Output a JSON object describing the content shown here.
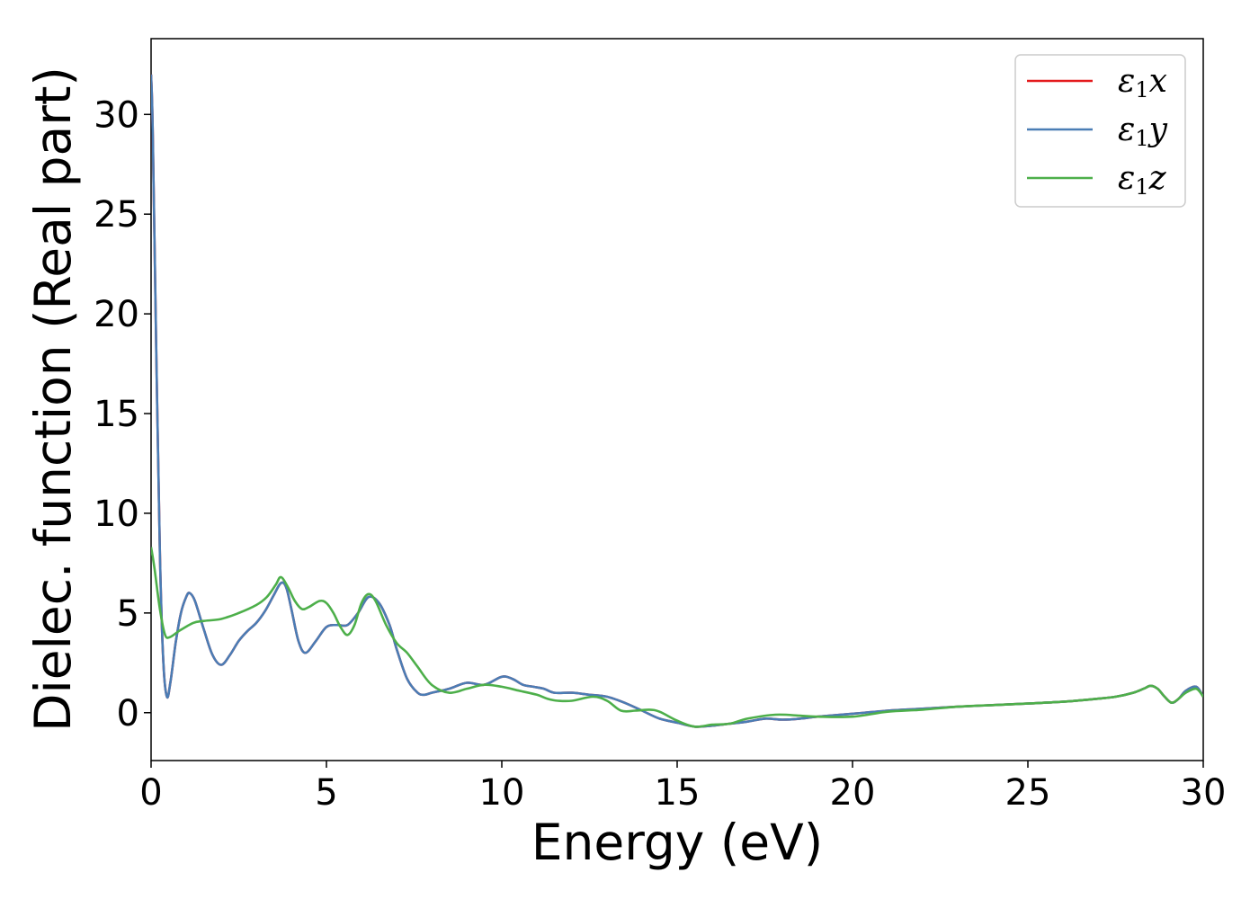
{
  "chart_data": {
    "type": "line",
    "xlabel": "Energy (eV)",
    "ylabel": "Dielec. function (Real part)",
    "xlim": [
      0,
      30
    ],
    "ylim": [
      -2.4,
      33.8
    ],
    "xticks": [
      0,
      5,
      10,
      15,
      20,
      25,
      30
    ],
    "yticks": [
      0,
      5,
      10,
      15,
      20,
      25,
      30
    ],
    "grid": false,
    "legend_position": "top-right",
    "series": [
      {
        "name": "ε1x",
        "symbol": "ε",
        "subscript": "1",
        "suffix": "x",
        "color": "#e41a1c",
        "x": [
          0,
          0.05,
          0.15,
          0.25,
          0.35,
          0.45,
          0.55,
          0.7,
          0.85,
          1.0,
          1.1,
          1.25,
          1.5,
          1.75,
          2.0,
          2.25,
          2.5,
          2.75,
          3.0,
          3.25,
          3.5,
          3.7,
          3.85,
          4.0,
          4.2,
          4.4,
          4.7,
          5.0,
          5.3,
          5.6,
          5.9,
          6.2,
          6.5,
          6.8,
          7.0,
          7.3,
          7.6,
          7.8,
          8.0,
          8.5,
          9.0,
          9.5,
          10.0,
          10.3,
          10.6,
          10.9,
          11.2,
          11.5,
          12.0,
          12.5,
          13.0,
          13.5,
          14.0,
          14.5,
          15.0,
          15.5,
          16.0,
          16.5,
          17.0,
          17.5,
          18.0,
          18.5,
          19.0,
          20.0,
          21.0,
          22.0,
          23.0,
          24.0,
          25.0,
          26.0,
          27.0,
          27.5,
          28.0,
          28.3,
          28.5,
          28.7,
          28.9,
          29.1,
          29.3,
          29.5,
          29.8,
          30.0
        ],
        "y": [
          32.0,
          29.0,
          18.0,
          8.0,
          2.5,
          0.8,
          1.5,
          3.5,
          5.0,
          5.8,
          6.0,
          5.6,
          4.2,
          2.9,
          2.4,
          2.9,
          3.6,
          4.1,
          4.5,
          5.1,
          5.9,
          6.5,
          6.3,
          5.2,
          3.6,
          3.0,
          3.6,
          4.3,
          4.4,
          4.4,
          5.0,
          5.8,
          5.5,
          4.4,
          3.2,
          1.7,
          1.0,
          0.9,
          1.0,
          1.2,
          1.5,
          1.4,
          1.8,
          1.7,
          1.4,
          1.3,
          1.2,
          1.0,
          1.0,
          0.9,
          0.8,
          0.5,
          0.1,
          -0.3,
          -0.5,
          -0.7,
          -0.65,
          -0.55,
          -0.45,
          -0.3,
          -0.35,
          -0.3,
          -0.2,
          -0.05,
          0.1,
          0.2,
          0.3,
          0.38,
          0.46,
          0.55,
          0.7,
          0.8,
          1.0,
          1.2,
          1.35,
          1.2,
          0.8,
          0.5,
          0.7,
          1.1,
          1.3,
          0.8
        ]
      },
      {
        "name": "ε1y",
        "symbol": "ε",
        "subscript": "1",
        "suffix": "y",
        "color": "#4a7db5",
        "x": [
          0,
          0.05,
          0.15,
          0.25,
          0.35,
          0.45,
          0.55,
          0.7,
          0.85,
          1.0,
          1.1,
          1.25,
          1.5,
          1.75,
          2.0,
          2.25,
          2.5,
          2.75,
          3.0,
          3.25,
          3.5,
          3.7,
          3.85,
          4.0,
          4.2,
          4.4,
          4.7,
          5.0,
          5.3,
          5.6,
          5.9,
          6.2,
          6.5,
          6.8,
          7.0,
          7.3,
          7.6,
          7.8,
          8.0,
          8.5,
          9.0,
          9.5,
          10.0,
          10.3,
          10.6,
          10.9,
          11.2,
          11.5,
          12.0,
          12.5,
          13.0,
          13.5,
          14.0,
          14.5,
          15.0,
          15.5,
          16.0,
          16.5,
          17.0,
          17.5,
          18.0,
          18.5,
          19.0,
          20.0,
          21.0,
          22.0,
          23.0,
          24.0,
          25.0,
          26.0,
          27.0,
          27.5,
          28.0,
          28.3,
          28.5,
          28.7,
          28.9,
          29.1,
          29.3,
          29.5,
          29.8,
          30.0
        ],
        "y": [
          32.0,
          29.0,
          18.0,
          8.0,
          2.5,
          0.8,
          1.5,
          3.5,
          5.0,
          5.8,
          6.0,
          5.6,
          4.2,
          2.9,
          2.4,
          2.9,
          3.6,
          4.1,
          4.5,
          5.1,
          5.9,
          6.5,
          6.3,
          5.2,
          3.6,
          3.0,
          3.6,
          4.3,
          4.4,
          4.4,
          5.0,
          5.8,
          5.5,
          4.4,
          3.2,
          1.7,
          1.0,
          0.9,
          1.0,
          1.2,
          1.5,
          1.4,
          1.8,
          1.7,
          1.4,
          1.3,
          1.2,
          1.0,
          1.0,
          0.9,
          0.8,
          0.5,
          0.1,
          -0.3,
          -0.5,
          -0.7,
          -0.65,
          -0.55,
          -0.45,
          -0.3,
          -0.35,
          -0.3,
          -0.2,
          -0.05,
          0.1,
          0.2,
          0.3,
          0.38,
          0.46,
          0.55,
          0.7,
          0.8,
          1.0,
          1.2,
          1.35,
          1.2,
          0.8,
          0.5,
          0.7,
          1.1,
          1.3,
          0.8
        ]
      },
      {
        "name": "ε1z",
        "symbol": "ε",
        "subscript": "1",
        "suffix": "z",
        "color": "#4daf4a",
        "x": [
          0,
          0.1,
          0.25,
          0.4,
          0.55,
          0.8,
          1.2,
          1.5,
          2.0,
          2.5,
          3.0,
          3.3,
          3.55,
          3.7,
          3.9,
          4.1,
          4.3,
          4.5,
          4.8,
          5.0,
          5.2,
          5.4,
          5.6,
          5.8,
          6.0,
          6.2,
          6.4,
          6.7,
          7.0,
          7.3,
          7.6,
          8.0,
          8.5,
          9.0,
          9.5,
          10.0,
          10.5,
          11.0,
          11.3,
          11.6,
          12.0,
          12.6,
          13.0,
          13.4,
          13.8,
          14.2,
          14.5,
          15.0,
          15.5,
          16.0,
          16.5,
          17.0,
          17.8,
          18.5,
          19.0,
          20.0,
          21.0,
          22.0,
          23.0,
          24.0,
          25.0,
          26.0,
          27.0,
          27.5,
          28.0,
          28.3,
          28.5,
          28.7,
          28.9,
          29.1,
          29.3,
          29.5,
          29.8,
          30.0
        ],
        "y": [
          8.3,
          7.2,
          5.2,
          3.9,
          3.8,
          4.1,
          4.5,
          4.6,
          4.7,
          5.0,
          5.4,
          5.8,
          6.4,
          6.8,
          6.3,
          5.6,
          5.2,
          5.3,
          5.6,
          5.5,
          5.0,
          4.3,
          3.9,
          4.4,
          5.5,
          5.95,
          5.6,
          4.4,
          3.5,
          3.0,
          2.3,
          1.4,
          1.0,
          1.2,
          1.4,
          1.3,
          1.1,
          0.9,
          0.7,
          0.6,
          0.6,
          0.8,
          0.6,
          0.1,
          0.1,
          0.15,
          0.05,
          -0.4,
          -0.7,
          -0.6,
          -0.55,
          -0.3,
          -0.1,
          -0.15,
          -0.2,
          -0.2,
          0.05,
          0.15,
          0.3,
          0.38,
          0.46,
          0.55,
          0.7,
          0.8,
          1.0,
          1.2,
          1.35,
          1.2,
          0.8,
          0.5,
          0.7,
          1.0,
          1.2,
          0.8
        ]
      }
    ]
  }
}
